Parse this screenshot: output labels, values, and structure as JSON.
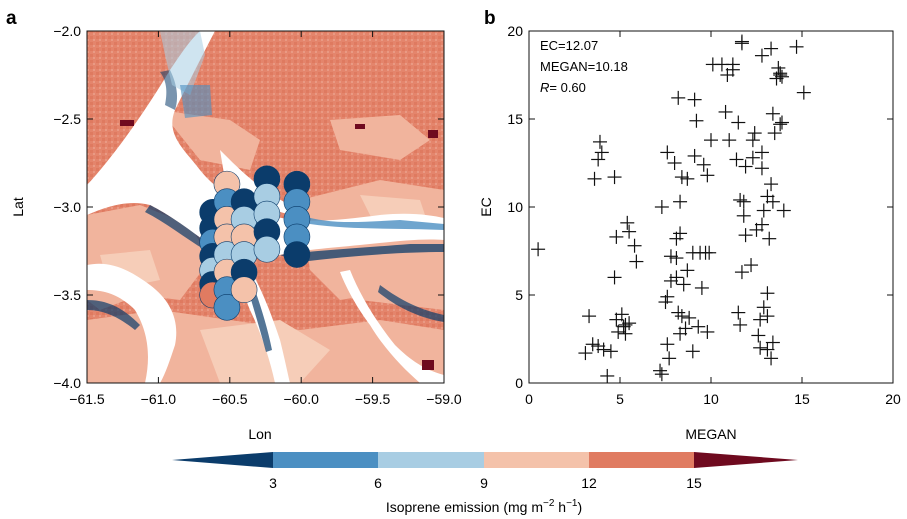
{
  "chart_data": [
    {
      "type": "heatmap",
      "panel_label": "a",
      "xlabel": "Lon",
      "ylabel": "Lat",
      "xlim": [
        -61.5,
        -59.0
      ],
      "ylim": [
        -4.0,
        -2.0
      ],
      "x_ticks": [
        -61.5,
        -61.0,
        -60.5,
        -60.0,
        -59.5,
        -59.0
      ],
      "x_tick_labels": [
        "−61.5",
        "−61.0",
        "−60.5",
        "−60.0",
        "−59.5",
        "−59.0"
      ],
      "y_ticks": [
        -2.0,
        -2.5,
        -3.0,
        -3.5,
        -4.0
      ],
      "y_tick_labels": [
        "−2.0",
        "−2.5",
        "−3.0",
        "−3.5",
        "−4.0"
      ],
      "tracks": [
        {
          "lon": -60.62,
          "lat": [
            -3.03,
            -3.12,
            -3.2,
            -3.28,
            -3.36,
            -3.44,
            -3.5
          ],
          "levels": [
            0,
            0,
            1,
            0,
            2,
            0,
            4
          ]
        },
        {
          "lon": -60.52,
          "lat": [
            -2.87,
            -2.97,
            -3.07,
            -3.17,
            -3.27,
            -3.37,
            -3.47,
            -3.57
          ],
          "levels": [
            3,
            1,
            3,
            3,
            2,
            3,
            1,
            1
          ]
        },
        {
          "lon": -60.4,
          "lat": [
            -2.97,
            -3.07,
            -3.17,
            -3.27,
            -3.37,
            -3.47
          ],
          "levels": [
            0,
            2,
            3,
            2,
            0,
            3
          ]
        },
        {
          "lon": -60.24,
          "lat": [
            -2.84,
            -2.94,
            -3.04,
            -3.14,
            -3.24
          ],
          "levels": [
            0,
            2,
            2,
            0,
            2
          ]
        },
        {
          "lon": -60.03,
          "lat": [
            -2.87,
            -2.97,
            -3.07,
            -3.17,
            -3.27
          ],
          "levels": [
            0,
            1,
            1,
            1,
            0
          ]
        }
      ]
    },
    {
      "type": "scatter",
      "panel_label": "b",
      "xlabel": "MEGAN",
      "ylabel": "EC",
      "xlim": [
        0,
        20
      ],
      "ylim": [
        0,
        20
      ],
      "x_ticks": [
        0,
        5,
        10,
        15,
        20
      ],
      "y_ticks": [
        0,
        5,
        10,
        15,
        20
      ],
      "annotations": [
        "EC=12.07",
        "MEGAN=10.18",
        "= 0.60"
      ],
      "annotation_r_symbol": "R",
      "points": [
        [
          0.5,
          7.6
        ],
        [
          3.1,
          1.7
        ],
        [
          3.3,
          3.8
        ],
        [
          3.5,
          2.2
        ],
        [
          3.6,
          11.6
        ],
        [
          3.8,
          2.1
        ],
        [
          3.8,
          12.7
        ],
        [
          3.9,
          13.7
        ],
        [
          4.0,
          13.1
        ],
        [
          4.1,
          1.9
        ],
        [
          4.3,
          0.4
        ],
        [
          4.5,
          1.8
        ],
        [
          4.7,
          11.7
        ],
        [
          4.7,
          6.0
        ],
        [
          4.8,
          8.3
        ],
        [
          4.8,
          3.6
        ],
        [
          4.9,
          2.9
        ],
        [
          5.1,
          3.9
        ],
        [
          5.2,
          3.2
        ],
        [
          5.3,
          3.3
        ],
        [
          5.3,
          2.8
        ],
        [
          5.4,
          9.1
        ],
        [
          5.5,
          3.4
        ],
        [
          5.5,
          8.6
        ],
        [
          5.8,
          7.8
        ],
        [
          5.9,
          6.9
        ],
        [
          7.2,
          0.7
        ],
        [
          7.3,
          0.5
        ],
        [
          7.3,
          10.0
        ],
        [
          7.5,
          4.6
        ],
        [
          7.6,
          13.1
        ],
        [
          7.6,
          4.9
        ],
        [
          7.6,
          2.2
        ],
        [
          7.7,
          1.4
        ],
        [
          7.8,
          7.2
        ],
        [
          7.8,
          5.8
        ],
        [
          8.0,
          12.5
        ],
        [
          8.1,
          8.2
        ],
        [
          8.1,
          7.1
        ],
        [
          8.1,
          6.0
        ],
        [
          8.2,
          16.2
        ],
        [
          8.2,
          4.0
        ],
        [
          8.3,
          10.3
        ],
        [
          8.3,
          2.8
        ],
        [
          8.3,
          8.5
        ],
        [
          8.4,
          3.8
        ],
        [
          8.4,
          11.7
        ],
        [
          8.5,
          5.6
        ],
        [
          8.6,
          3.1
        ],
        [
          8.7,
          11.6
        ],
        [
          8.7,
          6.4
        ],
        [
          8.8,
          3.7
        ],
        [
          9.0,
          1.8
        ],
        [
          9.0,
          7.4
        ],
        [
          9.1,
          12.9
        ],
        [
          9.1,
          16.1
        ],
        [
          9.2,
          14.9
        ],
        [
          9.3,
          3.2
        ],
        [
          9.4,
          7.4
        ],
        [
          9.5,
          5.4
        ],
        [
          9.6,
          12.4
        ],
        [
          9.7,
          7.4
        ],
        [
          9.8,
          2.9
        ],
        [
          9.8,
          11.8
        ],
        [
          9.9,
          7.4
        ],
        [
          10.0,
          13.8
        ],
        [
          10.1,
          18.1
        ],
        [
          10.6,
          18.1
        ],
        [
          10.8,
          15.4
        ],
        [
          10.9,
          17.5
        ],
        [
          11.0,
          13.8
        ],
        [
          11.2,
          17.8
        ],
        [
          11.2,
          18.1
        ],
        [
          11.4,
          12.7
        ],
        [
          11.5,
          4.0
        ],
        [
          11.5,
          14.8
        ],
        [
          11.6,
          10.4
        ],
        [
          11.6,
          3.3
        ],
        [
          11.7,
          6.3
        ],
        [
          11.7,
          19.3
        ],
        [
          11.7,
          19.4
        ],
        [
          11.8,
          10.3
        ],
        [
          11.8,
          9.5
        ],
        [
          11.9,
          8.4
        ],
        [
          11.9,
          12.3
        ],
        [
          12.2,
          6.7
        ],
        [
          12.3,
          13.8
        ],
        [
          12.3,
          12.8
        ],
        [
          12.4,
          14.2
        ],
        [
          12.5,
          8.7
        ],
        [
          12.6,
          2.7
        ],
        [
          12.7,
          2.0
        ],
        [
          12.7,
          3.6
        ],
        [
          12.8,
          12.2
        ],
        [
          12.8,
          9.0
        ],
        [
          12.8,
          18.6
        ],
        [
          12.8,
          13.1
        ],
        [
          12.9,
          9.8
        ],
        [
          12.9,
          4.3
        ],
        [
          13.1,
          10.6
        ],
        [
          13.1,
          1.9
        ],
        [
          13.1,
          3.8
        ],
        [
          13.1,
          5.1
        ],
        [
          13.2,
          8.2
        ],
        [
          13.3,
          1.4
        ],
        [
          13.3,
          11.3
        ],
        [
          13.3,
          19.0
        ],
        [
          13.4,
          10.3
        ],
        [
          13.4,
          2.3
        ],
        [
          13.4,
          15.3
        ],
        [
          13.5,
          14.2
        ],
        [
          13.6,
          17.3
        ],
        [
          13.7,
          17.9
        ],
        [
          13.8,
          17.6
        ],
        [
          13.8,
          17.5
        ],
        [
          13.8,
          14.7
        ],
        [
          13.9,
          14.8
        ],
        [
          13.9,
          17.4
        ],
        [
          14.0,
          9.8
        ],
        [
          14.7,
          19.1
        ],
        [
          15.1,
          16.5
        ]
      ]
    }
  ],
  "colorbar": {
    "title": "Isoprene emission (mg m",
    "title_sup1": "−2",
    "title_mid": " h",
    "title_sup2": "−1",
    "title_end": ")",
    "tick_labels": [
      "3",
      "6",
      "9",
      "12",
      "15"
    ],
    "colors": [
      "#0b3c6b",
      "#4b8fc2",
      "#a8cde3",
      "#f4c2aa",
      "#e07b61",
      "#6f0a1f"
    ]
  }
}
